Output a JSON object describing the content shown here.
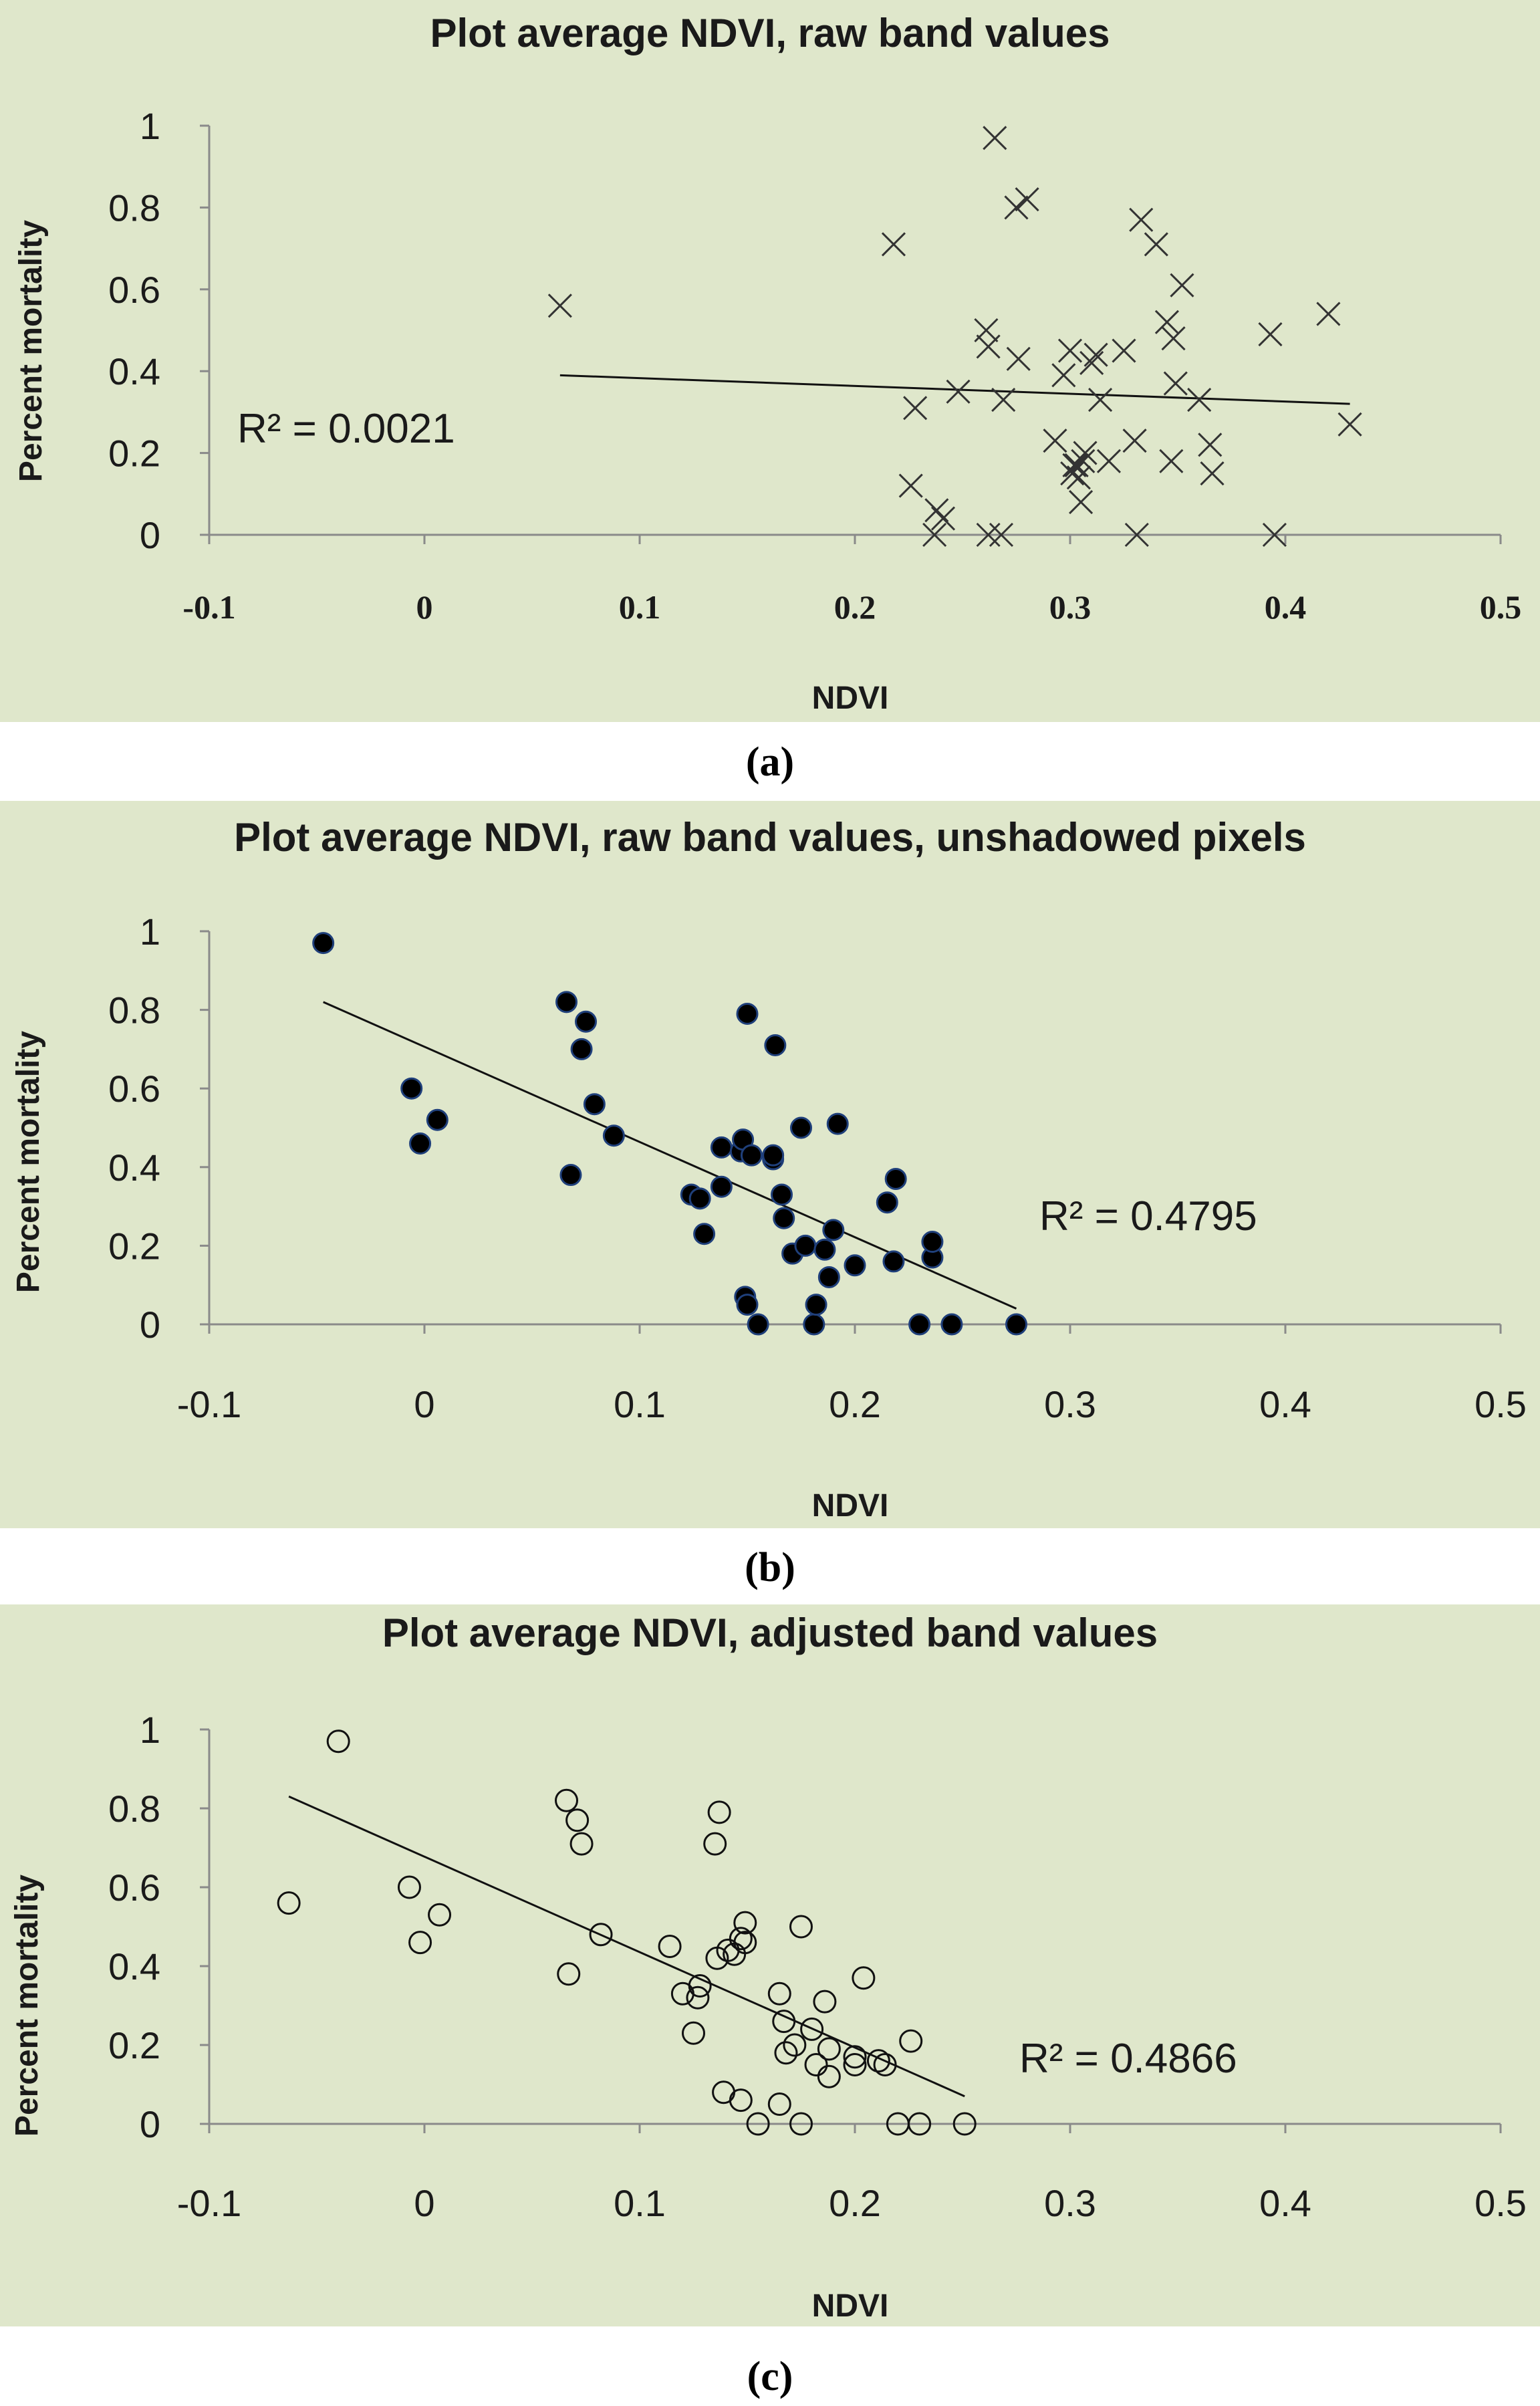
{
  "chart_data": [
    {
      "type": "scatter",
      "title": "Plot average NDVI, raw band values",
      "xlabel": "NDVI",
      "ylabel": "Percent mortality",
      "xlim": [
        -0.1,
        0.5
      ],
      "ylim": [
        0,
        1
      ],
      "x_ticks": [
        "-0.1",
        "0",
        "0.1",
        "0.2",
        "0.3",
        "0.4",
        "0.5"
      ],
      "y_ticks": [
        "0",
        "0.2",
        "0.4",
        "0.6",
        "0.8",
        "1"
      ],
      "marker": "x",
      "r2_label": "R² = 0.0021",
      "trendline": {
        "x": [
          0.063,
          0.43
        ],
        "y": [
          0.39,
          0.32
        ]
      },
      "points": [
        [
          0.063,
          0.56
        ],
        [
          0.218,
          0.71
        ],
        [
          0.226,
          0.12
        ],
        [
          0.228,
          0.31
        ],
        [
          0.237,
          0.0
        ],
        [
          0.238,
          0.06
        ],
        [
          0.241,
          0.04
        ],
        [
          0.248,
          0.35
        ],
        [
          0.261,
          0.5
        ],
        [
          0.262,
          0.46
        ],
        [
          0.262,
          0.0
        ],
        [
          0.265,
          0.97
        ],
        [
          0.268,
          0.0
        ],
        [
          0.269,
          0.33
        ],
        [
          0.275,
          0.8
        ],
        [
          0.276,
          0.43
        ],
        [
          0.28,
          0.82
        ],
        [
          0.293,
          0.23
        ],
        [
          0.297,
          0.39
        ],
        [
          0.3,
          0.45
        ],
        [
          0.301,
          0.15
        ],
        [
          0.302,
          0.17
        ],
        [
          0.303,
          0.17
        ],
        [
          0.304,
          0.14
        ],
        [
          0.305,
          0.08
        ],
        [
          0.306,
          0.18
        ],
        [
          0.307,
          0.2
        ],
        [
          0.31,
          0.42
        ],
        [
          0.312,
          0.44
        ],
        [
          0.314,
          0.33
        ],
        [
          0.318,
          0.18
        ],
        [
          0.325,
          0.45
        ],
        [
          0.33,
          0.23
        ],
        [
          0.331,
          0.0
        ],
        [
          0.333,
          0.77
        ],
        [
          0.34,
          0.71
        ],
        [
          0.345,
          0.52
        ],
        [
          0.347,
          0.18
        ],
        [
          0.348,
          0.48
        ],
        [
          0.349,
          0.37
        ],
        [
          0.352,
          0.61
        ],
        [
          0.36,
          0.33
        ],
        [
          0.365,
          0.22
        ],
        [
          0.366,
          0.15
        ],
        [
          0.393,
          0.49
        ],
        [
          0.395,
          0.0
        ],
        [
          0.42,
          0.54
        ],
        [
          0.43,
          0.27
        ]
      ],
      "caption": "(a)"
    },
    {
      "type": "scatter",
      "title": "Plot average NDVI, raw band values, unshadowed pixels",
      "xlabel": "NDVI",
      "ylabel": "Percent mortality",
      "xlim": [
        -0.1,
        0.5
      ],
      "ylim": [
        0,
        1
      ],
      "x_ticks": [
        "-0.1",
        "0",
        "0.1",
        "0.2",
        "0.3",
        "0.4",
        "0.5"
      ],
      "y_ticks": [
        "0",
        "0.2",
        "0.4",
        "0.6",
        "0.8",
        "1"
      ],
      "marker": "filled-circle",
      "r2_label": "R² = 0.4795",
      "trendline": {
        "x": [
          -0.047,
          0.275
        ],
        "y": [
          0.82,
          0.04
        ]
      },
      "points": [
        [
          -0.047,
          0.97
        ],
        [
          -0.006,
          0.6
        ],
        [
          -0.002,
          0.46
        ],
        [
          0.006,
          0.52
        ],
        [
          0.066,
          0.82
        ],
        [
          0.068,
          0.38
        ],
        [
          0.073,
          0.7
        ],
        [
          0.075,
          0.77
        ],
        [
          0.079,
          0.56
        ],
        [
          0.088,
          0.48
        ],
        [
          0.124,
          0.33
        ],
        [
          0.128,
          0.32
        ],
        [
          0.13,
          0.23
        ],
        [
          0.138,
          0.35
        ],
        [
          0.138,
          0.45
        ],
        [
          0.147,
          0.44
        ],
        [
          0.148,
          0.47
        ],
        [
          0.149,
          0.07
        ],
        [
          0.15,
          0.05
        ],
        [
          0.15,
          0.79
        ],
        [
          0.152,
          0.43
        ],
        [
          0.155,
          0.0
        ],
        [
          0.162,
          0.42
        ],
        [
          0.162,
          0.43
        ],
        [
          0.163,
          0.71
        ],
        [
          0.166,
          0.33
        ],
        [
          0.167,
          0.27
        ],
        [
          0.171,
          0.18
        ],
        [
          0.175,
          0.5
        ],
        [
          0.177,
          0.2
        ],
        [
          0.181,
          0.0
        ],
        [
          0.182,
          0.05
        ],
        [
          0.186,
          0.19
        ],
        [
          0.188,
          0.12
        ],
        [
          0.19,
          0.24
        ],
        [
          0.192,
          0.51
        ],
        [
          0.2,
          0.15
        ],
        [
          0.215,
          0.31
        ],
        [
          0.218,
          0.16
        ],
        [
          0.219,
          0.37
        ],
        [
          0.23,
          0.0
        ],
        [
          0.236,
          0.17
        ],
        [
          0.236,
          0.21
        ],
        [
          0.245,
          0.0
        ],
        [
          0.275,
          0.0
        ]
      ],
      "caption": "(b)"
    },
    {
      "type": "scatter",
      "title": "Plot average NDVI, adjusted band values",
      "xlabel": "NDVI",
      "ylabel": "Percent mortality",
      "xlim": [
        -0.1,
        0.5
      ],
      "ylim": [
        0,
        1
      ],
      "x_ticks": [
        "-0.1",
        "0",
        "0.1",
        "0.2",
        "0.3",
        "0.4",
        "0.5"
      ],
      "y_ticks": [
        "0",
        "0.2",
        "0.4",
        "0.6",
        "0.8",
        "1"
      ],
      "marker": "open-circle",
      "r2_label": "R² = 0.4866",
      "trendline": {
        "x": [
          -0.063,
          0.251
        ],
        "y": [
          0.83,
          0.07
        ]
      },
      "points": [
        [
          -0.063,
          0.56
        ],
        [
          -0.04,
          0.97
        ],
        [
          -0.007,
          0.6
        ],
        [
          -0.002,
          0.46
        ],
        [
          0.007,
          0.53
        ],
        [
          0.066,
          0.82
        ],
        [
          0.067,
          0.38
        ],
        [
          0.071,
          0.77
        ],
        [
          0.073,
          0.71
        ],
        [
          0.082,
          0.48
        ],
        [
          0.114,
          0.45
        ],
        [
          0.12,
          0.33
        ],
        [
          0.125,
          0.23
        ],
        [
          0.127,
          0.32
        ],
        [
          0.128,
          0.35
        ],
        [
          0.135,
          0.71
        ],
        [
          0.136,
          0.42
        ],
        [
          0.137,
          0.79
        ],
        [
          0.139,
          0.08
        ],
        [
          0.141,
          0.44
        ],
        [
          0.144,
          0.43
        ],
        [
          0.147,
          0.06
        ],
        [
          0.147,
          0.47
        ],
        [
          0.149,
          0.51
        ],
        [
          0.149,
          0.46
        ],
        [
          0.155,
          0.0
        ],
        [
          0.165,
          0.33
        ],
        [
          0.165,
          0.05
        ],
        [
          0.167,
          0.26
        ],
        [
          0.168,
          0.18
        ],
        [
          0.172,
          0.2
        ],
        [
          0.175,
          0.0
        ],
        [
          0.175,
          0.5
        ],
        [
          0.18,
          0.24
        ],
        [
          0.182,
          0.15
        ],
        [
          0.186,
          0.31
        ],
        [
          0.188,
          0.19
        ],
        [
          0.188,
          0.12
        ],
        [
          0.2,
          0.17
        ],
        [
          0.2,
          0.15
        ],
        [
          0.204,
          0.37
        ],
        [
          0.211,
          0.16
        ],
        [
          0.214,
          0.15
        ],
        [
          0.22,
          0.0
        ],
        [
          0.226,
          0.21
        ],
        [
          0.23,
          0.0
        ],
        [
          0.251,
          0.0
        ]
      ],
      "caption": "(c)"
    }
  ]
}
